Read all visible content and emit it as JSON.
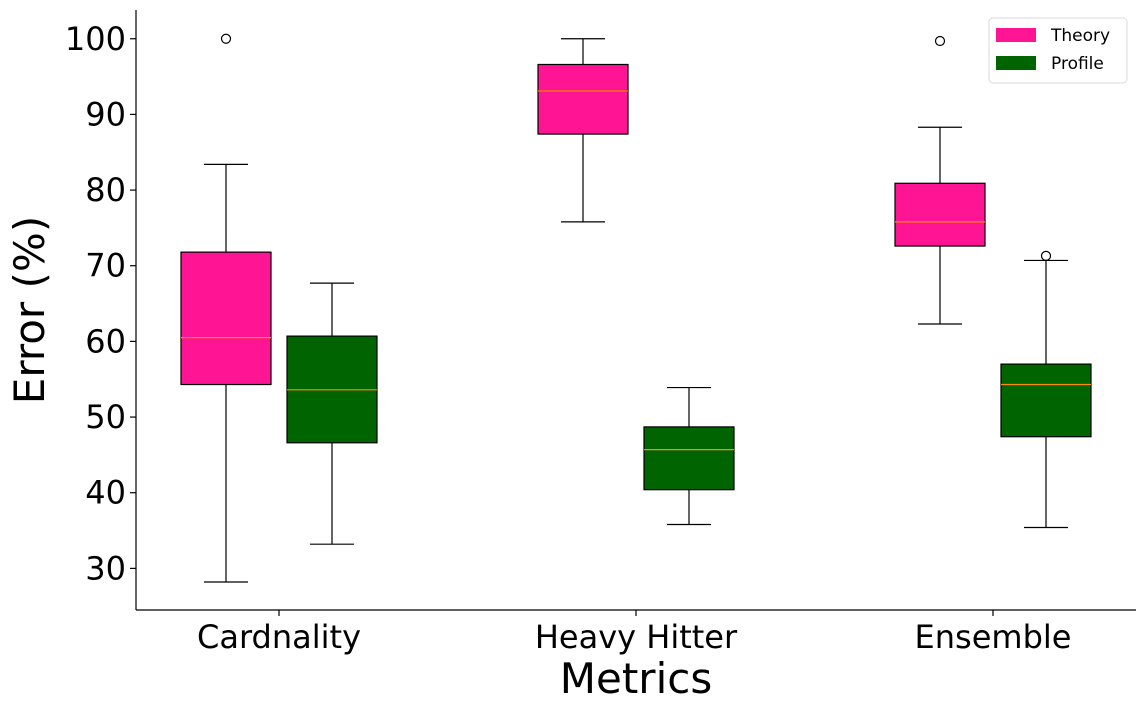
{
  "chart_data": {
    "type": "boxplot",
    "xlabel": "Metrics",
    "ylabel": "Error (%)",
    "categories": [
      "Cardnality",
      "Heavy Hitter",
      "Ensemble"
    ],
    "y_ticks": [
      30,
      40,
      50,
      60,
      70,
      80,
      90,
      100
    ],
    "ylim": [
      24.5,
      103.8
    ],
    "grid": false,
    "legend_position": "top-right",
    "series": [
      {
        "name": "Theory",
        "color": "#ff1493",
        "boxes": [
          {
            "whisker_low": 28.2,
            "q1": 54.3,
            "median": 60.5,
            "q3": 71.8,
            "whisker_high": 83.4,
            "outliers": [
              100.0
            ]
          },
          {
            "whisker_low": 75.8,
            "q1": 87.4,
            "median": 93.1,
            "q3": 96.6,
            "whisker_high": 100.0,
            "outliers": []
          },
          {
            "whisker_low": 62.3,
            "q1": 72.6,
            "median": 75.8,
            "q3": 80.9,
            "whisker_high": 88.3,
            "outliers": [
              99.7
            ]
          }
        ]
      },
      {
        "name": "Profile",
        "color": "#006400",
        "boxes": [
          {
            "whisker_low": 33.2,
            "q1": 46.6,
            "median": 53.6,
            "q3": 60.7,
            "whisker_high": 67.7,
            "outliers": []
          },
          {
            "whisker_low": 35.8,
            "q1": 40.4,
            "median": 45.7,
            "q3": 48.7,
            "whisker_high": 53.9,
            "outliers": []
          },
          {
            "whisker_low": 35.4,
            "q1": 47.4,
            "median": 54.3,
            "q3": 57.0,
            "whisker_high": 70.7,
            "outliers": [
              71.3
            ]
          }
        ]
      }
    ],
    "median_color": "#ff8c00"
  }
}
